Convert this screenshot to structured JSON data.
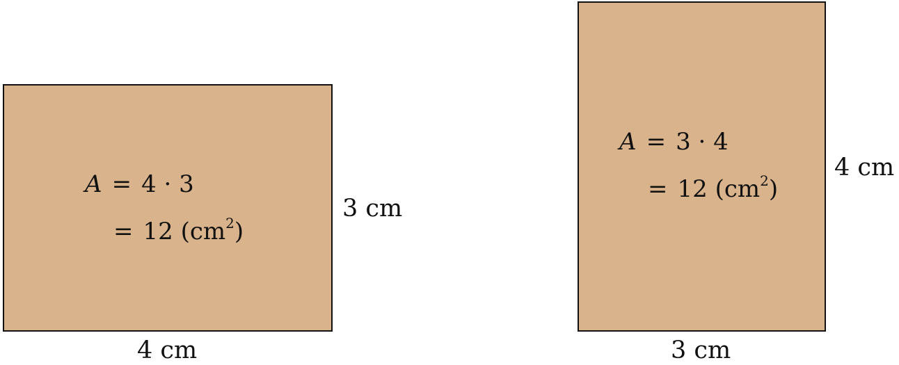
{
  "colors": {
    "fill": "#d9b38c",
    "stroke": "#111111"
  },
  "left_rectangle": {
    "formula": {
      "variable": "A",
      "equals": "=",
      "product": "4 · 3",
      "result_equals": "=",
      "result_value": "12",
      "unit_open": "(cm",
      "unit_exponent": "2",
      "unit_close": ")"
    },
    "width_label": "4 cm",
    "height_label": "3 cm"
  },
  "right_rectangle": {
    "formula": {
      "variable": "A",
      "equals": "=",
      "product": "3 · 4",
      "result_equals": "=",
      "result_value": "12",
      "unit_open": "(cm",
      "unit_exponent": "2",
      "unit_close": ")"
    },
    "width_label": "3 cm",
    "height_label": "4 cm"
  }
}
